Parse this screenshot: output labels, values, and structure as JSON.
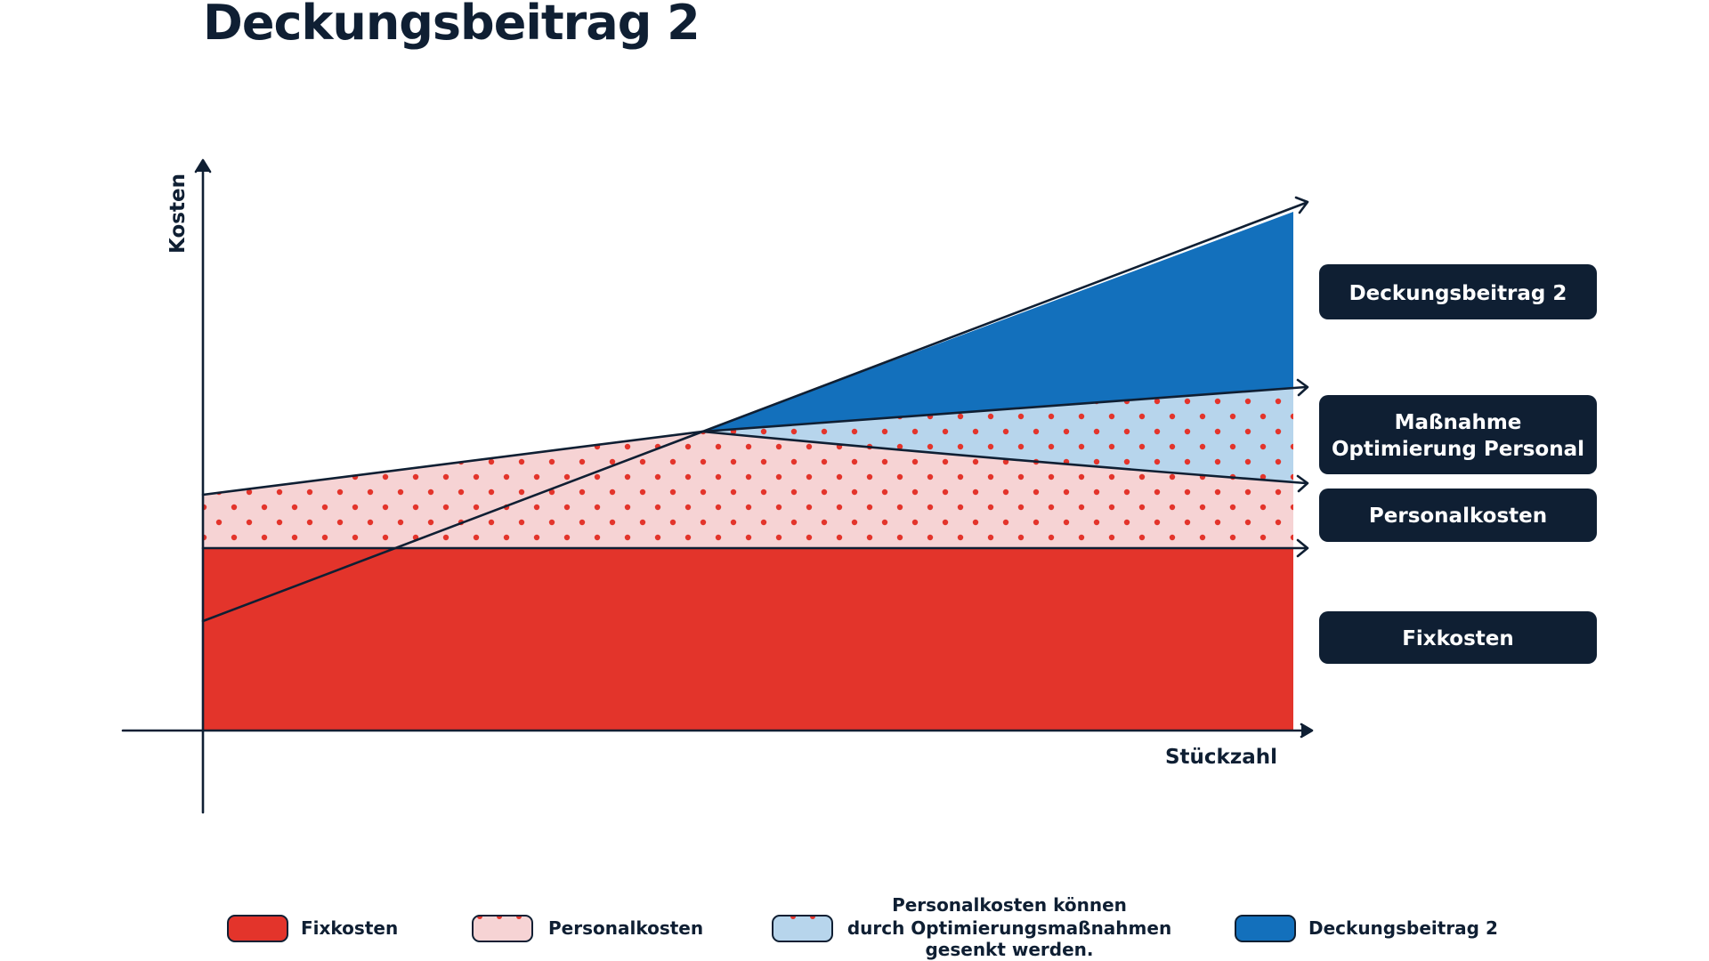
{
  "title": "Deckungsbeitrag 2",
  "axes": {
    "y_label": "Kosten",
    "x_label": "Stückzahl"
  },
  "boxes": {
    "deckungsbeitrag": "Deckungsbeitrag 2",
    "massnahme_line1": "Maßnahme",
    "massnahme_line2": "Optimierung Personal",
    "personalkosten": "Personalkosten",
    "fixkosten": "Fixkosten"
  },
  "legend": {
    "fixkosten": "Fixkosten",
    "personalkosten": "Personalkosten",
    "optimierung_line1": "Personalkosten können",
    "optimierung_line2": "durch Optimierungsmaßnahmen",
    "optimierung_line3": "gesenkt werden.",
    "deckungsbeitrag": "Deckungsbeitrag 2"
  },
  "colors": {
    "fixkosten": "#e3342b",
    "personalkosten": "#f6d3d4",
    "dots": "#e3342b",
    "optimierung": "#b7d5ec",
    "deckungsbeitrag": "#1370bc",
    "navy": "#0f1f33"
  }
}
